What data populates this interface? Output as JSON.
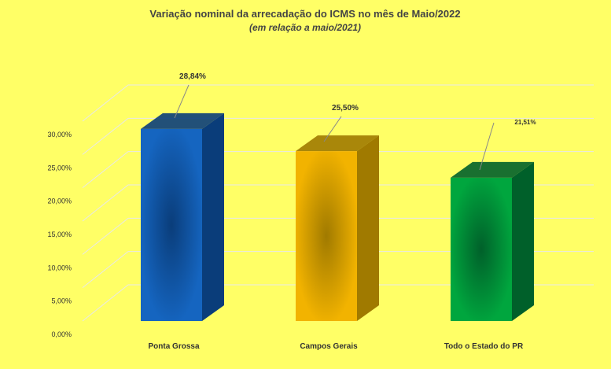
{
  "chart_data": {
    "type": "bar",
    "title": "Variação nominal da arrecadação do ICMS no mês de Maio/2022",
    "subtitle": "(em relação a maio/2021)",
    "categories": [
      "Ponta Grossa",
      "Campos Gerais",
      "Todo o Estado do PR"
    ],
    "values": [
      28.84,
      25.5,
      21.51
    ],
    "data_labels": [
      "28,84%",
      "25,50%",
      "21,51%"
    ],
    "y_ticks": [
      "0,00%",
      "5,00%",
      "10,00%",
      "15,00%",
      "20,00%",
      "25,00%",
      "30,00%"
    ],
    "ylim": [
      0,
      30
    ],
    "xlabel": "",
    "ylabel": "",
    "grid": true,
    "legend": "none",
    "style": "3d-column",
    "colors": {
      "background": "#FFFF66",
      "bars": [
        "#1565C0",
        "#F2B300",
        "#00A63E"
      ],
      "bar_dark": [
        "#0A3D7A",
        "#A07A00",
        "#00602A"
      ],
      "gridline": "#E8E8E8"
    }
  }
}
